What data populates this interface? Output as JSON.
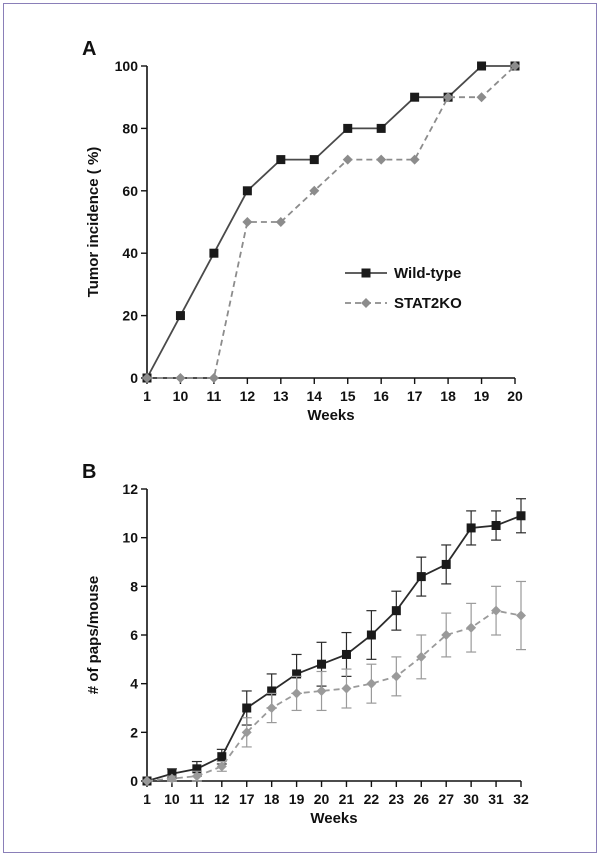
{
  "chart_data": [
    {
      "panel": "A",
      "type": "line",
      "categories": [
        "1",
        "10",
        "11",
        "12",
        "13",
        "14",
        "15",
        "16",
        "17",
        "18",
        "19",
        "20"
      ],
      "xlabel": "Weeks",
      "ylabel": "Tumor incidence ( %)",
      "ylim": [
        0,
        100
      ],
      "yticks": [
        0,
        20,
        40,
        60,
        80,
        100
      ],
      "grid": false,
      "legend_position": "center-right",
      "series": [
        {
          "name": "Wild-type",
          "color": "#4a4a4a",
          "marker": "square",
          "dash": false,
          "values": [
            0,
            20,
            40,
            60,
            70,
            70,
            80,
            80,
            90,
            90,
            100,
            100
          ]
        },
        {
          "name": "STAT2KO",
          "color": "#8c8c8c",
          "marker": "diamond",
          "dash": true,
          "values": [
            0,
            0,
            0,
            50,
            50,
            60,
            70,
            70,
            70,
            90,
            90,
            100
          ]
        }
      ]
    },
    {
      "panel": "B",
      "type": "line",
      "categories": [
        "1",
        "10",
        "11",
        "12",
        "17",
        "18",
        "19",
        "20",
        "21",
        "22",
        "23",
        "26",
        "27",
        "30",
        "31",
        "32"
      ],
      "xlabel": "Weeks",
      "ylabel": "# of paps/mouse",
      "ylim": [
        0,
        12
      ],
      "yticks": [
        0,
        2,
        4,
        6,
        8,
        10,
        12
      ],
      "grid": false,
      "series": [
        {
          "color": "#2b2b2b",
          "marker": "square",
          "dash": false,
          "values": [
            0,
            0.3,
            0.5,
            1.0,
            3.0,
            3.7,
            4.4,
            4.8,
            5.2,
            6.0,
            7.0,
            8.4,
            8.9,
            10.4,
            10.5,
            10.9
          ],
          "errors": [
            0,
            0.2,
            0.3,
            0.3,
            0.7,
            0.7,
            0.8,
            0.9,
            0.9,
            1.0,
            0.8,
            0.8,
            0.8,
            0.7,
            0.6,
            0.7
          ]
        },
        {
          "color": "#9a9a9a",
          "marker": "diamond",
          "dash": true,
          "values": [
            0,
            0.1,
            0.2,
            0.6,
            2.0,
            3.0,
            3.6,
            3.7,
            3.8,
            4.0,
            4.3,
            5.1,
            6.0,
            6.3,
            7.0,
            6.8
          ],
          "errors": [
            0,
            0.1,
            0.2,
            0.2,
            0.6,
            0.6,
            0.7,
            0.8,
            0.8,
            0.8,
            0.8,
            0.9,
            0.9,
            1.0,
            1.0,
            1.4
          ]
        }
      ]
    }
  ]
}
